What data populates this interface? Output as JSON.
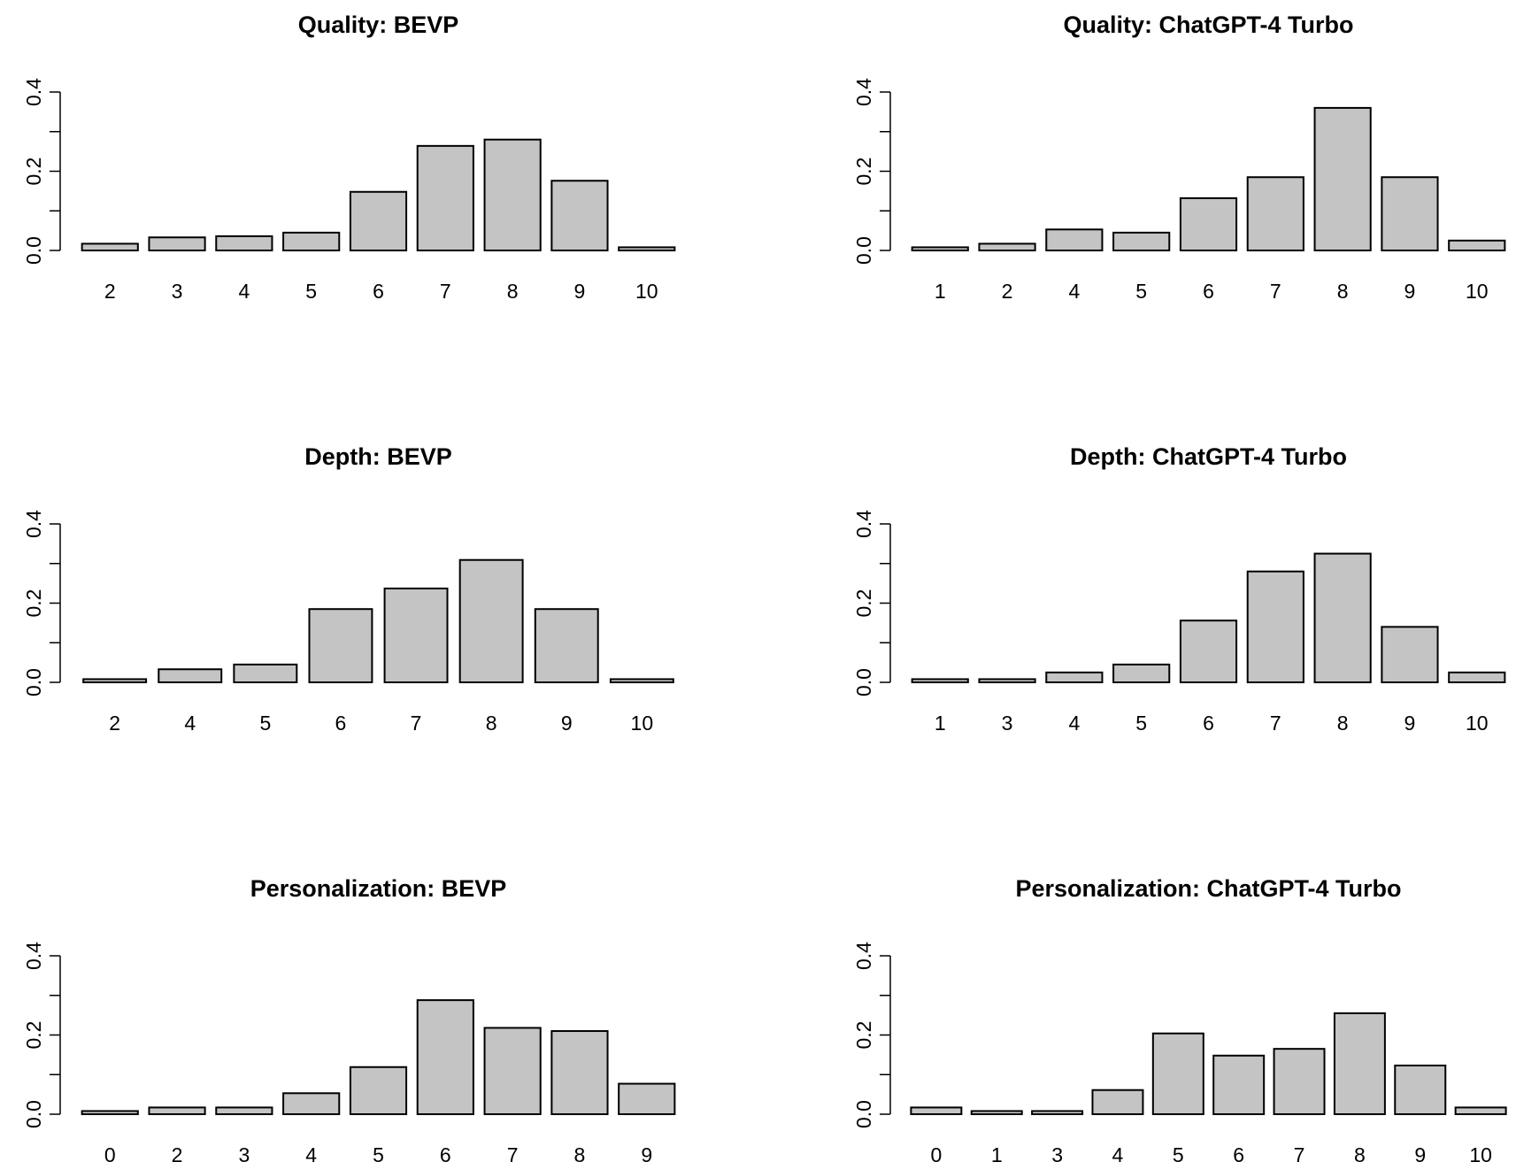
{
  "chart_data": [
    {
      "type": "bar",
      "title": "Quality: BEVP",
      "categories": [
        "2",
        "3",
        "4",
        "5",
        "6",
        "7",
        "8",
        "9",
        "10"
      ],
      "values": [
        0.017,
        0.033,
        0.036,
        0.045,
        0.148,
        0.264,
        0.28,
        0.176,
        0.008
      ],
      "ylim": [
        0,
        0.4
      ],
      "yticks": [
        "0.0",
        "0.2",
        "0.4"
      ],
      "xlabel": "",
      "ylabel": "",
      "grid": false
    },
    {
      "type": "bar",
      "title": "Quality: ChatGPT-4 Turbo",
      "categories": [
        "1",
        "2",
        "4",
        "5",
        "6",
        "7",
        "8",
        "9",
        "10"
      ],
      "values": [
        0.008,
        0.017,
        0.053,
        0.045,
        0.132,
        0.185,
        0.36,
        0.185,
        0.025
      ],
      "ylim": [
        0,
        0.4
      ],
      "yticks": [
        "0.0",
        "0.2",
        "0.4"
      ],
      "xlabel": "",
      "ylabel": "",
      "grid": false
    },
    {
      "type": "bar",
      "title": "Depth: BEVP",
      "categories": [
        "2",
        "4",
        "5",
        "6",
        "7",
        "8",
        "9",
        "10"
      ],
      "values": [
        0.008,
        0.033,
        0.045,
        0.185,
        0.237,
        0.309,
        0.185,
        0.008
      ],
      "ylim": [
        0,
        0.4
      ],
      "yticks": [
        "0.0",
        "0.2",
        "0.4"
      ],
      "xlabel": "",
      "ylabel": "",
      "grid": false
    },
    {
      "type": "bar",
      "title": "Depth: ChatGPT-4 Turbo",
      "categories": [
        "1",
        "3",
        "4",
        "5",
        "6",
        "7",
        "8",
        "9",
        "10"
      ],
      "values": [
        0.008,
        0.008,
        0.025,
        0.045,
        0.156,
        0.28,
        0.325,
        0.14,
        0.025
      ],
      "ylim": [
        0,
        0.4
      ],
      "yticks": [
        "0.0",
        "0.2",
        "0.4"
      ],
      "xlabel": "",
      "ylabel": "",
      "grid": false
    },
    {
      "type": "bar",
      "title": "Personalization: BEVP",
      "categories": [
        "0",
        "2",
        "3",
        "4",
        "5",
        "6",
        "7",
        "8",
        "9"
      ],
      "values": [
        0.008,
        0.017,
        0.017,
        0.053,
        0.119,
        0.288,
        0.218,
        0.21,
        0.077
      ],
      "ylim": [
        0,
        0.4
      ],
      "yticks": [
        "0.0",
        "0.2",
        "0.4"
      ],
      "xlabel": "",
      "ylabel": "",
      "grid": false
    },
    {
      "type": "bar",
      "title": "Personalization: ChatGPT-4 Turbo",
      "categories": [
        "0",
        "1",
        "3",
        "4",
        "5",
        "6",
        "7",
        "8",
        "9",
        "10"
      ],
      "values": [
        0.017,
        0.008,
        0.008,
        0.061,
        0.204,
        0.148,
        0.165,
        0.255,
        0.123,
        0.017
      ],
      "ylim": [
        0,
        0.4
      ],
      "yticks": [
        "0.0",
        "0.2",
        "0.4"
      ],
      "xlabel": "",
      "ylabel": "",
      "grid": false
    }
  ]
}
